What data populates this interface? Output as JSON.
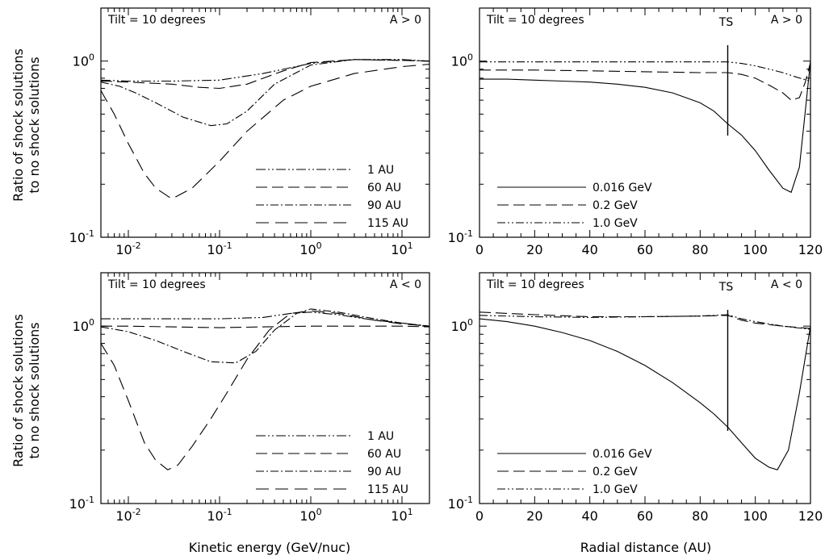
{
  "figure": {
    "ylabel_line1": "Ratio of shock solutions",
    "ylabel_line2": "to no shock solutions",
    "xlabel_left": "Kinetic energy (GeV/nuc)",
    "xlabel_right": "Radial distance (AU)"
  },
  "chart_data": [
    {
      "id": "top-left",
      "type": "line",
      "title": "Tilt = 10 degrees",
      "polarity": "A > 0",
      "xscale": "log",
      "yscale": "log",
      "xlim": [
        0.005,
        20
      ],
      "ylim": [
        0.1,
        2
      ],
      "xticks": [
        {
          "v": 0.01,
          "base": "10",
          "exp": "-2"
        },
        {
          "v": 0.1,
          "base": "10",
          "exp": "-1"
        },
        {
          "v": 1,
          "base": "10",
          "exp": "0"
        },
        {
          "v": 10,
          "base": "10",
          "exp": "1"
        }
      ],
      "yticks": [
        {
          "v": 0.1,
          "base": "10",
          "exp": "-1"
        },
        {
          "v": 1,
          "base": "10",
          "exp": "0"
        }
      ],
      "series": [
        {
          "name": "1 AU",
          "dash": "12,3,2,3,2,3",
          "x": [
            0.005,
            0.01,
            0.03,
            0.1,
            0.3,
            1,
            3,
            10,
            20
          ],
          "y": [
            0.78,
            0.77,
            0.77,
            0.78,
            0.85,
            0.97,
            1.02,
            1.02,
            1.0
          ]
        },
        {
          "name": "60 AU",
          "dash": "14,6",
          "x": [
            0.005,
            0.01,
            0.03,
            0.06,
            0.1,
            0.2,
            0.5,
            1,
            3,
            10,
            20
          ],
          "y": [
            0.77,
            0.76,
            0.74,
            0.71,
            0.7,
            0.74,
            0.88,
            0.98,
            1.02,
            1.01,
            1.0
          ]
        },
        {
          "name": "90 AU",
          "dash": "10,3,2,3",
          "x": [
            0.005,
            0.008,
            0.012,
            0.02,
            0.04,
            0.08,
            0.12,
            0.2,
            0.4,
            1,
            3,
            10,
            20
          ],
          "y": [
            0.76,
            0.72,
            0.66,
            0.58,
            0.48,
            0.43,
            0.44,
            0.52,
            0.74,
            0.95,
            1.02,
            1.01,
            1.0
          ]
        },
        {
          "name": "115 AU",
          "dash": "16,8",
          "x": [
            0.005,
            0.007,
            0.01,
            0.015,
            0.02,
            0.03,
            0.05,
            0.1,
            0.2,
            0.5,
            1,
            3,
            10,
            20
          ],
          "y": [
            0.68,
            0.5,
            0.34,
            0.23,
            0.19,
            0.165,
            0.19,
            0.27,
            0.4,
            0.6,
            0.72,
            0.85,
            0.93,
            0.96
          ]
        }
      ],
      "legend_position": "lower-right"
    },
    {
      "id": "top-right",
      "type": "line",
      "title": "Tilt = 10 degrees",
      "polarity": "A > 0",
      "annotation": "TS",
      "annotation_x": 90,
      "xscale": "linear",
      "yscale": "log",
      "xlim": [
        0,
        120
      ],
      "ylim": [
        0.1,
        2
      ],
      "xticks": [
        {
          "v": 0,
          "label": "0"
        },
        {
          "v": 20,
          "label": "20"
        },
        {
          "v": 40,
          "label": "40"
        },
        {
          "v": 60,
          "label": "60"
        },
        {
          "v": 80,
          "label": "80"
        },
        {
          "v": 100,
          "label": "100"
        },
        {
          "v": 120,
          "label": "120"
        }
      ],
      "yticks": [
        {
          "v": 0.1,
          "base": "10",
          "exp": "-1"
        },
        {
          "v": 1,
          "base": "10",
          "exp": "0"
        }
      ],
      "series": [
        {
          "name": "0.016 GeV",
          "dash": "",
          "x": [
            0,
            10,
            20,
            30,
            40,
            50,
            60,
            70,
            80,
            85,
            90,
            95,
            100,
            105,
            110,
            113,
            116,
            118,
            120
          ],
          "y": [
            0.79,
            0.79,
            0.78,
            0.77,
            0.76,
            0.74,
            0.71,
            0.66,
            0.58,
            0.52,
            0.44,
            0.38,
            0.31,
            0.24,
            0.19,
            0.18,
            0.25,
            0.5,
            1.0
          ]
        },
        {
          "name": "0.2 GeV",
          "dash": "14,6",
          "x": [
            0,
            20,
            40,
            60,
            80,
            90,
            95,
            100,
            105,
            110,
            113,
            116,
            118,
            120
          ],
          "y": [
            0.89,
            0.89,
            0.88,
            0.87,
            0.86,
            0.86,
            0.84,
            0.8,
            0.73,
            0.66,
            0.6,
            0.62,
            0.75,
            0.98
          ]
        },
        {
          "name": "1.0 GeV",
          "dash": "10,3,2,3,2,3",
          "x": [
            0,
            20,
            40,
            60,
            80,
            90,
            95,
            100,
            105,
            110,
            115,
            120
          ],
          "y": [
            0.99,
            0.99,
            0.99,
            0.99,
            0.99,
            0.99,
            0.97,
            0.94,
            0.9,
            0.86,
            0.81,
            0.77
          ]
        }
      ],
      "legend_position": "lower-left"
    },
    {
      "id": "bottom-left",
      "type": "line",
      "title": "Tilt = 10 degrees",
      "polarity": "A < 0",
      "xscale": "log",
      "yscale": "log",
      "xlim": [
        0.005,
        20
      ],
      "ylim": [
        0.1,
        2
      ],
      "xticks": [
        {
          "v": 0.01,
          "base": "10",
          "exp": "-2"
        },
        {
          "v": 0.1,
          "base": "10",
          "exp": "-1"
        },
        {
          "v": 1,
          "base": "10",
          "exp": "0"
        },
        {
          "v": 10,
          "base": "10",
          "exp": "1"
        }
      ],
      "yticks": [
        {
          "v": 0.1,
          "base": "10",
          "exp": "-1"
        },
        {
          "v": 1,
          "base": "10",
          "exp": "0"
        }
      ],
      "series": [
        {
          "name": "1 AU",
          "dash": "12,3,2,3,2,3",
          "x": [
            0.005,
            0.01,
            0.03,
            0.1,
            0.3,
            0.6,
            1,
            2,
            5,
            10,
            20
          ],
          "y": [
            1.1,
            1.1,
            1.1,
            1.1,
            1.12,
            1.18,
            1.2,
            1.16,
            1.08,
            1.04,
            1.0
          ]
        },
        {
          "name": "60 AU",
          "dash": "14,6",
          "x": [
            0.005,
            0.01,
            0.03,
            0.1,
            0.3,
            1,
            3,
            10,
            20
          ],
          "y": [
            1.0,
            1.0,
            0.99,
            0.98,
            0.99,
            1.0,
            1.0,
            1.0,
            0.99
          ]
        },
        {
          "name": "90 AU",
          "dash": "10,3,2,3",
          "x": [
            0.005,
            0.01,
            0.02,
            0.04,
            0.08,
            0.15,
            0.25,
            0.4,
            0.7,
            1,
            2,
            5,
            10,
            20
          ],
          "y": [
            0.99,
            0.93,
            0.83,
            0.72,
            0.63,
            0.62,
            0.72,
            0.95,
            1.18,
            1.25,
            1.2,
            1.1,
            1.04,
            1.0
          ]
        },
        {
          "name": "115 AU",
          "dash": "16,8",
          "x": [
            0.005,
            0.007,
            0.01,
            0.015,
            0.02,
            0.027,
            0.035,
            0.05,
            0.08,
            0.12,
            0.2,
            0.35,
            0.6,
            1,
            2,
            5,
            10,
            20
          ],
          "y": [
            0.8,
            0.6,
            0.38,
            0.22,
            0.175,
            0.155,
            0.165,
            0.21,
            0.3,
            0.42,
            0.65,
            0.95,
            1.18,
            1.22,
            1.18,
            1.08,
            1.03,
            1.0
          ]
        }
      ],
      "extra_series_note": "",
      "legend_position": "lower-right"
    },
    {
      "id": "bottom-right",
      "type": "line",
      "title": "Tilt = 10 degrees",
      "polarity": "A < 0",
      "annotation": "TS",
      "annotation_x": 90,
      "xscale": "linear",
      "yscale": "log",
      "xlim": [
        0,
        120
      ],
      "ylim": [
        0.1,
        2
      ],
      "xticks": [
        {
          "v": 0,
          "label": "0"
        },
        {
          "v": 20,
          "label": "20"
        },
        {
          "v": 40,
          "label": "40"
        },
        {
          "v": 60,
          "label": "60"
        },
        {
          "v": 80,
          "label": "80"
        },
        {
          "v": 100,
          "label": "100"
        },
        {
          "v": 120,
          "label": "120"
        }
      ],
      "yticks": [
        {
          "v": 0.1,
          "base": "10",
          "exp": "-1"
        },
        {
          "v": 1,
          "base": "10",
          "exp": "0"
        }
      ],
      "series": [
        {
          "name": "0.016 GeV",
          "dash": "",
          "x": [
            0,
            10,
            20,
            30,
            40,
            50,
            60,
            70,
            80,
            85,
            90,
            95,
            100,
            105,
            108,
            112,
            116,
            120
          ],
          "y": [
            1.1,
            1.06,
            1.0,
            0.92,
            0.83,
            0.72,
            0.6,
            0.48,
            0.37,
            0.32,
            0.27,
            0.22,
            0.18,
            0.16,
            0.155,
            0.2,
            0.42,
            1.0
          ]
        },
        {
          "name": "0.2 GeV",
          "dash": "14,6",
          "x": [
            0,
            20,
            40,
            60,
            80,
            90,
            95,
            100,
            110,
            120
          ],
          "y": [
            1.2,
            1.16,
            1.13,
            1.13,
            1.14,
            1.15,
            1.08,
            1.04,
            1.0,
            0.97
          ]
        },
        {
          "name": "1.0 GeV",
          "dash": "10,3,2,3,2,3",
          "x": [
            0,
            20,
            40,
            60,
            80,
            90,
            95,
            100,
            110,
            120
          ],
          "y": [
            1.15,
            1.13,
            1.12,
            1.13,
            1.14,
            1.16,
            1.1,
            1.06,
            1.0,
            0.96
          ]
        }
      ],
      "legend_position": "lower-left"
    }
  ]
}
